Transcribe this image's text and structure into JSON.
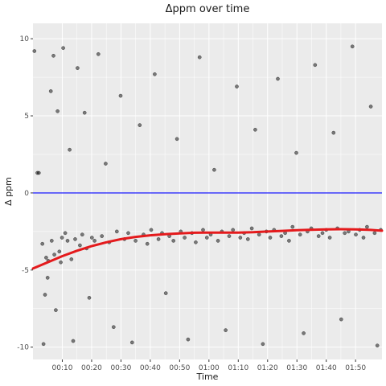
{
  "chart_data": {
    "type": "scatter",
    "title": "Δppm over time",
    "xlabel": "Time",
    "ylabel": "Δ ppm",
    "x_unit": "minutes",
    "xlim": [
      0,
      119
    ],
    "ylim": [
      -10.8,
      11.0
    ],
    "x_ticks": [
      {
        "value": 10,
        "label": "00:10"
      },
      {
        "value": 20,
        "label": "00:20"
      },
      {
        "value": 30,
        "label": "00:30"
      },
      {
        "value": 40,
        "label": "00:40"
      },
      {
        "value": 50,
        "label": "00:50"
      },
      {
        "value": 60,
        "label": "01:00"
      },
      {
        "value": 70,
        "label": "01:10"
      },
      {
        "value": 80,
        "label": "01:20"
      },
      {
        "value": 90,
        "label": "01:30"
      },
      {
        "value": 100,
        "label": "01:40"
      },
      {
        "value": 110,
        "label": "01:50"
      }
    ],
    "y_ticks": [
      {
        "value": -10,
        "label": "-10"
      },
      {
        "value": -5,
        "label": "-5"
      },
      {
        "value": 0,
        "label": "0"
      },
      {
        "value": 5,
        "label": "5"
      },
      {
        "value": 10,
        "label": "10"
      }
    ],
    "grid": true,
    "background": "#ebebeb",
    "point_color": "#1a1a1a",
    "point_opacity": 0.55,
    "reference_line": {
      "y": 0,
      "color": "#0000ff"
    },
    "smooth": {
      "color": "#e41a1c",
      "x": [
        0,
        5,
        10,
        15,
        20,
        25,
        30,
        35,
        40,
        45,
        50,
        55,
        60,
        65,
        70,
        75,
        80,
        85,
        90,
        95,
        100,
        105,
        110,
        115,
        119
      ],
      "y": [
        -4.9,
        -4.5,
        -4.1,
        -3.75,
        -3.45,
        -3.2,
        -3.0,
        -2.85,
        -2.75,
        -2.68,
        -2.62,
        -2.58,
        -2.57,
        -2.57,
        -2.57,
        -2.55,
        -2.5,
        -2.46,
        -2.42,
        -2.39,
        -2.36,
        -2.35,
        -2.36,
        -2.4,
        -2.45
      ]
    },
    "points": {
      "x": [
        0.5,
        1.5,
        2.0,
        3.2,
        3.6,
        4.1,
        4.5,
        5.0,
        5.2,
        6.1,
        6.4,
        7.0,
        7.3,
        7.8,
        8.4,
        9.0,
        9.5,
        9.9,
        10.3,
        11.0,
        11.8,
        12.5,
        13.1,
        13.7,
        14.4,
        15.2,
        16.0,
        16.8,
        17.6,
        18.3,
        19.2,
        20.1,
        21.0,
        22.3,
        23.5,
        24.8,
        26.0,
        27.5,
        28.6,
        29.9,
        31.2,
        32.5,
        33.8,
        35.0,
        36.4,
        37.7,
        39.0,
        40.3,
        41.5,
        42.8,
        44.0,
        45.3,
        46.5,
        47.9,
        49.1,
        50.4,
        51.7,
        52.9,
        54.2,
        55.5,
        56.8,
        58.0,
        59.3,
        60.6,
        61.8,
        63.1,
        64.4,
        65.7,
        66.9,
        68.2,
        69.5,
        70.7,
        72.0,
        73.3,
        74.6,
        75.8,
        77.1,
        78.4,
        79.6,
        80.9,
        82.2,
        83.5,
        84.7,
        86.0,
        87.3,
        88.5,
        89.8,
        91.1,
        92.3,
        93.6,
        94.9,
        96.2,
        97.4,
        98.7,
        100.0,
        101.2,
        102.5,
        103.8,
        105.1,
        106.3,
        107.6,
        108.9,
        110.1,
        111.4,
        112.7,
        113.9,
        115.2,
        116.5,
        117.4,
        118.6
      ],
      "y": [
        9.2,
        1.3,
        1.3,
        -3.3,
        -9.8,
        -6.6,
        -4.2,
        -5.5,
        -4.4,
        6.6,
        -3.1,
        8.9,
        -4.0,
        -7.6,
        5.3,
        -3.8,
        -4.5,
        -2.9,
        9.4,
        -2.6,
        -3.1,
        2.8,
        -4.3,
        -9.6,
        -3.0,
        8.1,
        -3.4,
        -2.7,
        5.2,
        -3.6,
        -6.8,
        -2.9,
        -3.1,
        9.0,
        -2.8,
        1.9,
        -3.2,
        -8.7,
        -2.5,
        6.3,
        -3.0,
        -2.6,
        -9.7,
        -3.1,
        4.4,
        -2.7,
        -3.3,
        -2.4,
        7.7,
        -3.0,
        -2.6,
        -6.5,
        -2.8,
        -3.1,
        3.5,
        -2.5,
        -2.9,
        -9.5,
        -2.6,
        -3.2,
        8.8,
        -2.4,
        -2.9,
        -2.7,
        1.5,
        -3.1,
        -2.5,
        -8.9,
        -2.8,
        -2.4,
        6.9,
        -2.9,
        -2.6,
        -3.0,
        -2.3,
        4.1,
        -2.7,
        -9.8,
        -2.5,
        -2.9,
        -2.4,
        7.4,
        -2.8,
        -2.6,
        -3.1,
        -2.2,
        2.6,
        -2.7,
        -9.1,
        -2.5,
        -2.3,
        8.3,
        -2.8,
        -2.6,
        -2.4,
        -2.9,
        3.9,
        -2.3,
        -8.2,
        -2.6,
        -2.5,
        9.5,
        -2.7,
        -2.4,
        -2.9,
        -2.2,
        5.6,
        -2.6,
        -9.9,
        -2.4
      ]
    }
  }
}
